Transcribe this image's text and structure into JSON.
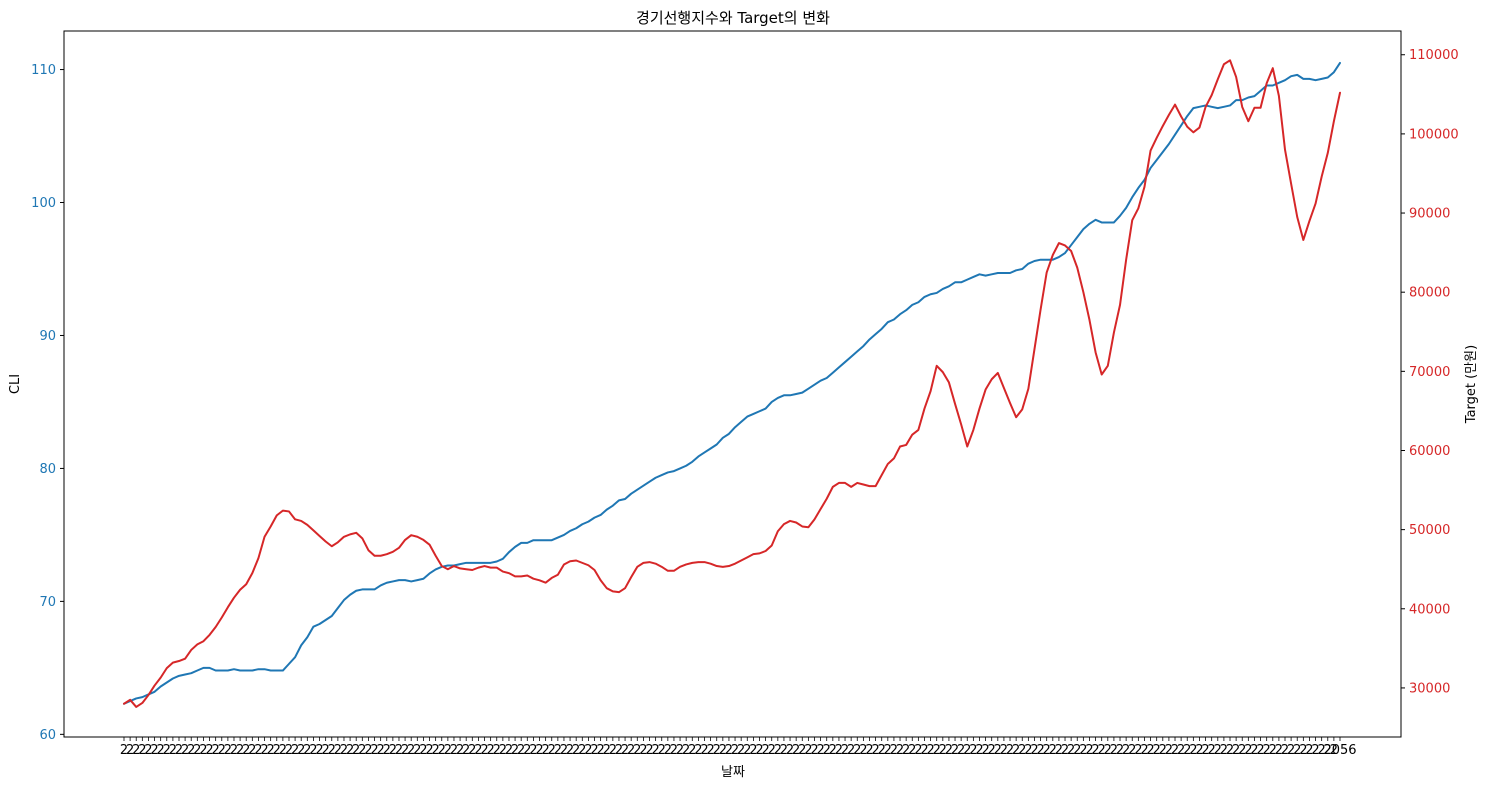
{
  "chart_data": {
    "type": "line",
    "title": "경기선행지수와 Target의 변화",
    "xlabel": "날짜",
    "ylabel_left": "CLI",
    "ylabel_right": "Target (만원)",
    "ylim_left": [
      59.8,
      112.9
    ],
    "ylim_right": [
      23800,
      113000
    ],
    "yticks_left": [
      60,
      70,
      80,
      90,
      100,
      110
    ],
    "yticks_right": [
      30000,
      40000,
      50000,
      60000,
      70000,
      80000,
      90000,
      100000,
      110000
    ],
    "x_first_label": "2",
    "x_last_label": "2056",
    "grid": false,
    "series": [
      {
        "name": "CLI",
        "color": "#1f77b4",
        "axis": "left",
        "values": [
          62.3,
          62.5,
          62.7,
          62.8,
          63.0,
          63.2,
          63.6,
          63.9,
          64.2,
          64.4,
          64.5,
          64.6,
          64.8,
          65.0,
          65.0,
          64.8,
          64.8,
          64.8,
          64.9,
          64.8,
          64.8,
          64.8,
          64.9,
          64.9,
          64.8,
          64.8,
          64.8,
          65.3,
          65.8,
          66.7,
          67.3,
          68.1,
          68.3,
          68.6,
          68.9,
          69.5,
          70.1,
          70.5,
          70.8,
          70.9,
          70.9,
          70.9,
          71.2,
          71.4,
          71.5,
          71.6,
          71.6,
          71.5,
          71.6,
          71.7,
          72.1,
          72.4,
          72.6,
          72.7,
          72.7,
          72.8,
          72.9,
          72.9,
          72.9,
          72.9,
          72.9,
          73.0,
          73.2,
          73.7,
          74.1,
          74.4,
          74.4,
          74.6,
          74.6,
          74.6,
          74.6,
          74.8,
          75.0,
          75.3,
          75.5,
          75.8,
          76.0,
          76.3,
          76.5,
          76.9,
          77.2,
          77.6,
          77.7,
          78.1,
          78.4,
          78.7,
          79.0,
          79.3,
          79.5,
          79.7,
          79.8,
          80.0,
          80.2,
          80.5,
          80.9,
          81.2,
          81.5,
          81.8,
          82.3,
          82.6,
          83.1,
          83.5,
          83.9,
          84.1,
          84.3,
          84.5,
          85.0,
          85.3,
          85.5,
          85.5,
          85.6,
          85.7,
          86.0,
          86.3,
          86.6,
          86.8,
          87.2,
          87.6,
          88.0,
          88.4,
          88.8,
          89.2,
          89.7,
          90.1,
          90.5,
          91.0,
          91.2,
          91.6,
          91.9,
          92.3,
          92.5,
          92.9,
          93.1,
          93.2,
          93.5,
          93.7,
          94.0,
          94.0,
          94.2,
          94.4,
          94.6,
          94.5,
          94.6,
          94.7,
          94.7,
          94.7,
          94.9,
          95.0,
          95.4,
          95.6,
          95.7,
          95.7,
          95.7,
          95.9,
          96.2,
          96.8,
          97.4,
          98.0,
          98.4,
          98.7,
          98.5,
          98.5,
          98.5,
          99.0,
          99.6,
          100.4,
          101.1,
          101.7,
          102.6,
          103.2,
          103.8,
          104.4,
          105.1,
          105.8,
          106.5,
          107.1,
          107.2,
          107.3,
          107.2,
          107.1,
          107.2,
          107.3,
          107.7,
          107.7,
          107.9,
          108.0,
          108.4,
          108.8,
          108.8,
          109.0,
          109.2,
          109.5,
          109.6,
          109.3,
          109.3,
          109.2,
          109.3,
          109.4,
          109.8,
          110.5
        ]
      },
      {
        "name": "Target",
        "color": "#d62728",
        "axis": "right",
        "values": [
          28000,
          28500,
          27600,
          28100,
          29100,
          30300,
          31300,
          32500,
          33200,
          33400,
          33700,
          34800,
          35500,
          35900,
          36700,
          37700,
          38900,
          40200,
          41400,
          42400,
          43100,
          44500,
          46400,
          49100,
          50400,
          51800,
          52400,
          52300,
          51300,
          51100,
          50600,
          49900,
          49200,
          48500,
          47900,
          48400,
          49100,
          49400,
          49600,
          48900,
          47400,
          46700,
          46700,
          46900,
          47200,
          47700,
          48700,
          49300,
          49100,
          48700,
          48100,
          46700,
          45400,
          45000,
          45400,
          45100,
          45000,
          44900,
          45200,
          45400,
          45200,
          45200,
          44700,
          44500,
          44100,
          44100,
          44200,
          43800,
          43600,
          43300,
          43900,
          44300,
          45600,
          46000,
          46100,
          45800,
          45500,
          44900,
          43600,
          42600,
          42200,
          42100,
          42600,
          44000,
          45300,
          45800,
          45900,
          45700,
          45300,
          44800,
          44800,
          45300,
          45600,
          45800,
          45900,
          45900,
          45700,
          45400,
          45300,
          45400,
          45700,
          46100,
          46500,
          46900,
          47000,
          47300,
          48000,
          49800,
          50700,
          51100,
          50900,
          50400,
          50300,
          51300,
          52600,
          53900,
          55400,
          55900,
          55900,
          55400,
          55900,
          55700,
          55500,
          55500,
          56900,
          58300,
          59000,
          60500,
          60700,
          62000,
          62600,
          65300,
          67500,
          70700,
          69900,
          68600,
          65900,
          63300,
          60500,
          62600,
          65300,
          67700,
          69000,
          69800,
          67900,
          66000,
          64200,
          65200,
          67800,
          72800,
          77800,
          82500,
          84700,
          86200,
          85900,
          85200,
          83100,
          80000,
          76500,
          72400,
          69600,
          70700,
          74900,
          78400,
          84100,
          89100,
          90600,
          93300,
          97900,
          99500,
          101000,
          102400,
          103700,
          102200,
          100900,
          100200,
          100800,
          103400,
          104900,
          106900,
          108800,
          109300,
          107200,
          103400,
          101600,
          103300,
          103300,
          106400,
          108300,
          104800,
          98000,
          93700,
          89500,
          86600,
          89000,
          91200,
          94600,
          97600,
          101600,
          105200
        ]
      }
    ]
  }
}
